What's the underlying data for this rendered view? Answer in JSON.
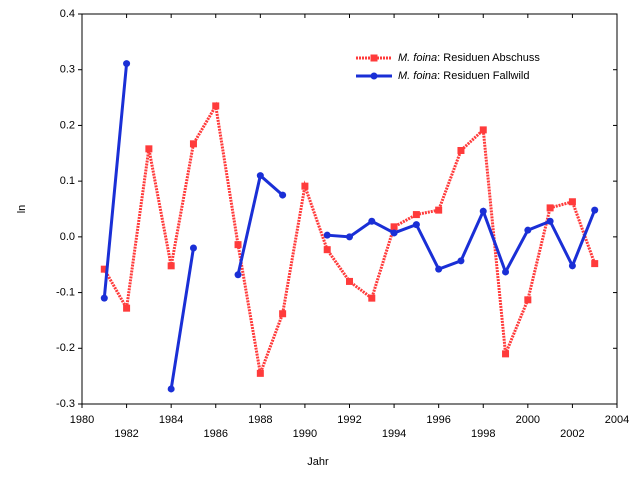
{
  "chart_data": {
    "type": "line",
    "xlabel": "Jahr",
    "ylabel": "ln",
    "x": [
      1981,
      1982,
      1983,
      1984,
      1985,
      1986,
      1987,
      1988,
      1989,
      1990,
      1991,
      1992,
      1993,
      1994,
      1995,
      1996,
      1997,
      1998,
      1999,
      2000,
      2001,
      2002,
      2003
    ],
    "series": [
      {
        "name": "M. foina: Residuen Abschuss",
        "color": "#ff3b3b",
        "dashed": true,
        "marker": "square",
        "values": [
          -0.058,
          -0.128,
          0.158,
          -0.052,
          0.167,
          0.235,
          -0.014,
          -0.245,
          -0.138,
          0.091,
          -0.023,
          -0.08,
          -0.11,
          0.018,
          0.04,
          0.048,
          0.155,
          0.192,
          -0.21,
          -0.113,
          0.052,
          0.063,
          -0.048
        ]
      },
      {
        "name": "M. foina: Residuen Fallwild",
        "color": "#1a2fd6",
        "dashed": false,
        "marker": "circle",
        "values": [
          -0.11,
          0.311,
          null,
          -0.273,
          -0.02,
          null,
          -0.068,
          0.11,
          0.075,
          null,
          0.003,
          0.0,
          0.028,
          0.007,
          0.022,
          -0.058,
          -0.043,
          0.046,
          -0.063,
          0.012,
          0.028,
          -0.052,
          0.048
        ]
      }
    ],
    "xlim": [
      1980,
      2004
    ],
    "xticks": [
      1980,
      1982,
      1984,
      1986,
      1988,
      1990,
      1992,
      1994,
      1996,
      1998,
      2000,
      2002,
      2004
    ],
    "ylim": [
      -0.3,
      0.4
    ],
    "yticks": [
      -0.3,
      -0.2,
      -0.1,
      {
        "value": 0,
        "label": "0.0"
      },
      0.1,
      0.2,
      0.3,
      0.4
    ],
    "legend": "upper right"
  }
}
